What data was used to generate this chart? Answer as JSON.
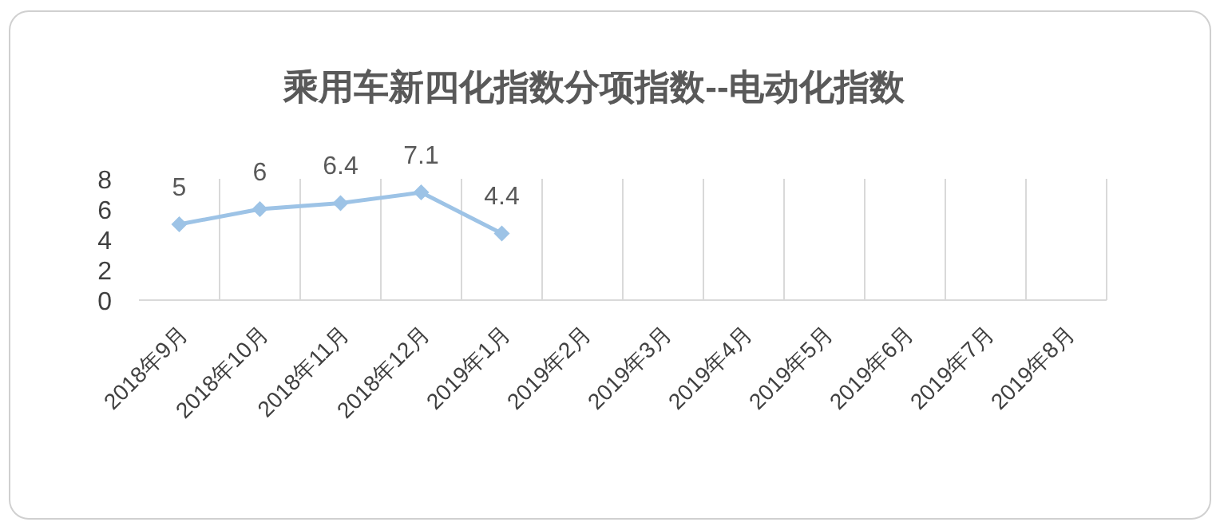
{
  "chart_data": {
    "type": "line",
    "title": "乘用车新四化指数分项指数--电动化指数",
    "categories": [
      "2018年9月",
      "2018年10月",
      "2018年11月",
      "2018年12月",
      "2019年1月",
      "2019年2月",
      "2019年3月",
      "2019年4月",
      "2019年5月",
      "2019年6月",
      "2019年7月",
      "2019年8月"
    ],
    "series": [
      {
        "color": "#9dc3e6",
        "values": [
          5,
          6,
          6.4,
          7.1,
          4.4,
          null,
          null,
          null,
          null,
          null,
          null,
          null
        ]
      }
    ],
    "ylim": [
      0,
      8
    ],
    "yticks": [
      0,
      2,
      4,
      6,
      8
    ],
    "grid": "x",
    "marker": "diamond",
    "line_style": "solid",
    "data_labels": true
  }
}
